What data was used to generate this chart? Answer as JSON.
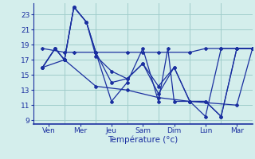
{
  "xlabel": "Température (°c)",
  "background_color": "#d4eeec",
  "line_color": "#1a2fa0",
  "grid_color": "#a0ccca",
  "ylim": [
    8.5,
    24.5
  ],
  "yticks": [
    9,
    11,
    13,
    15,
    17,
    19,
    21,
    23
  ],
  "x_tick_positions": [
    0.5,
    1.5,
    2.5,
    3.5,
    4.5,
    5.5,
    6.5
  ],
  "x_tick_labels": [
    "Ven",
    "Mer",
    "Jeu",
    "Sam",
    "Dim",
    "Lun",
    "Mar"
  ],
  "x_sep": [
    0,
    1,
    2,
    3,
    4,
    5,
    6,
    7
  ],
  "xlim": [
    0,
    7
  ],
  "series": [
    {
      "x": [
        0.3,
        1.0,
        1.3,
        2.0,
        3.0,
        3.5,
        4.0,
        5.0,
        5.5,
        6.0,
        7.0
      ],
      "y": [
        18.5,
        18.0,
        18.0,
        18.0,
        18.0,
        18.0,
        18.0,
        18.0,
        18.5,
        18.5,
        18.5
      ]
    },
    {
      "x": [
        0.3,
        0.7,
        1.0,
        1.3,
        1.7,
        2.0,
        2.5,
        3.0,
        3.5,
        4.0,
        4.3,
        4.5,
        5.0,
        5.5,
        6.0,
        6.5,
        7.0
      ],
      "y": [
        16.0,
        18.5,
        17.0,
        24.0,
        22.0,
        18.0,
        11.5,
        14.0,
        18.5,
        11.5,
        18.5,
        11.5,
        11.5,
        9.5,
        18.5,
        18.5,
        18.5
      ]
    },
    {
      "x": [
        0.3,
        0.7,
        1.0,
        1.3,
        1.7,
        2.0,
        2.5,
        3.0,
        3.5,
        4.0,
        4.5,
        5.0,
        5.5,
        6.0,
        6.5,
        7.0
      ],
      "y": [
        16.0,
        18.5,
        17.0,
        24.0,
        22.0,
        18.0,
        14.0,
        14.5,
        16.5,
        12.5,
        16.0,
        11.5,
        11.5,
        9.5,
        18.5,
        18.5
      ]
    },
    {
      "x": [
        0.3,
        0.7,
        1.0,
        1.3,
        1.7,
        2.0,
        2.5,
        3.0,
        3.5,
        4.0,
        4.5,
        5.0,
        5.5,
        6.0,
        6.5,
        7.0
      ],
      "y": [
        16.0,
        18.5,
        17.0,
        24.0,
        22.0,
        17.5,
        15.5,
        14.5,
        16.5,
        13.5,
        16.0,
        11.5,
        11.5,
        9.5,
        18.5,
        18.5
      ]
    },
    {
      "x": [
        0.3,
        1.0,
        2.0,
        3.0,
        4.0,
        5.0,
        6.5,
        7.0
      ],
      "y": [
        16.0,
        17.0,
        13.5,
        13.0,
        12.0,
        11.5,
        11.0,
        18.5
      ]
    }
  ]
}
